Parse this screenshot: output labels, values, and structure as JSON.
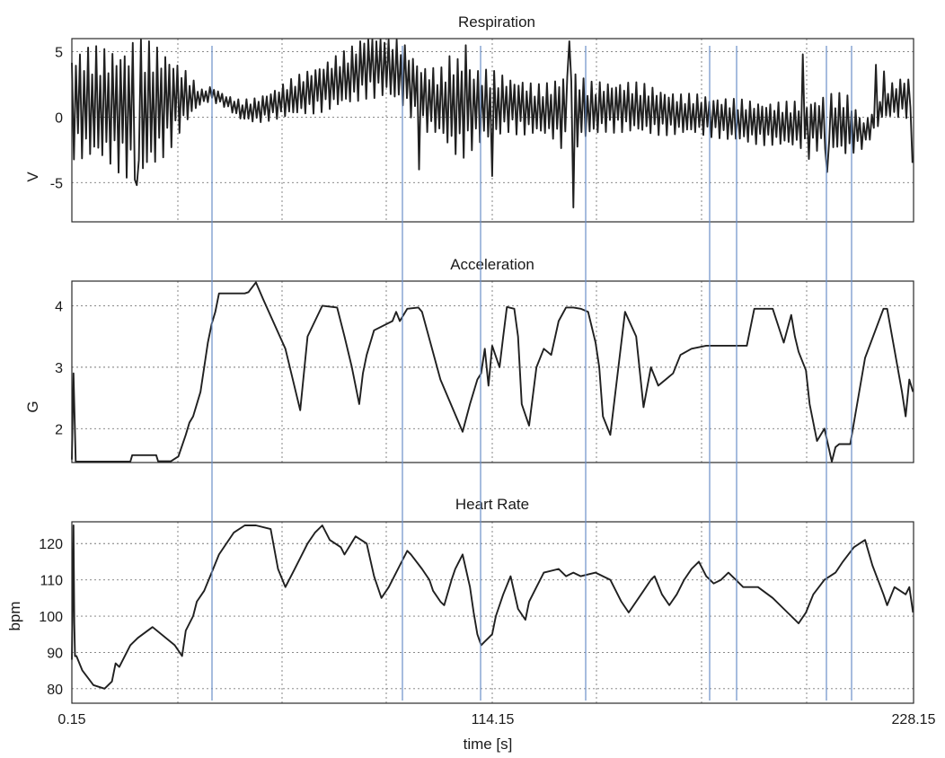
{
  "chart_data": [
    {
      "type": "line",
      "title": "Respiration",
      "ylabel": "V",
      "xlabel": "",
      "xlim": [
        0.15,
        228.15
      ],
      "ylim": [
        -8,
        6
      ],
      "yticks": [
        -5,
        0,
        5
      ],
      "xtick_labels": [],
      "grid": true,
      "series": [
        {
          "x": [
            0,
            5,
            10,
            15,
            18,
            22,
            26,
            30,
            35,
            38,
            42,
            46,
            50,
            55,
            60,
            65,
            70,
            75,
            80,
            85,
            90,
            95,
            100,
            103,
            106,
            110,
            114,
            118,
            122,
            126,
            130,
            135,
            140,
            145,
            150,
            155,
            160,
            165,
            170,
            175,
            180,
            185,
            190,
            195,
            200,
            205,
            210,
            215,
            220,
            225,
            228
          ],
          "amp": [
            4.2,
            4.5,
            4.5,
            5.2,
            6.0,
            5.0,
            4.0,
            2.5,
            0.6,
            0.6,
            0.5,
            0.8,
            1.0,
            1.2,
            1.5,
            1.8,
            2.0,
            2.2,
            2.6,
            2.8,
            2.6,
            2.6,
            2.7,
            4.0,
            4.0,
            3.0,
            2.8,
            2.2,
            2.2,
            2.0,
            2.2,
            3.5,
            2.2,
            2.0,
            2.0,
            2.0,
            1.8,
            1.6,
            1.6,
            1.6,
            1.7,
            1.7,
            1.7,
            1.8,
            2.0,
            2.2,
            2.5,
            1.0,
            1.2,
            1.6,
            1.7
          ],
          "center": [
            1.0,
            1.0,
            0.8,
            0.5,
            0.5,
            0.8,
            1.2,
            1.5,
            1.5,
            1.8,
            1.2,
            0.5,
            0.5,
            1.0,
            1.5,
            2.0,
            2.5,
            3.0,
            4.0,
            4.2,
            3.2,
            1.5,
            1.0,
            1.0,
            0.8,
            0.8,
            0.8,
            1.0,
            0.8,
            0.5,
            0.5,
            0.5,
            0.5,
            0.8,
            0.8,
            0.6,
            0.4,
            0.2,
            0.2,
            0.0,
            -0.3,
            -0.4,
            -0.5,
            -0.6,
            -0.6,
            -0.4,
            -0.6,
            -1.3,
            1.0,
            1.5,
            1.6
          ],
          "spikes": [
            [
              18,
              -5.2
            ],
            [
              21,
              5.8
            ],
            [
              94,
              -4
            ],
            [
              107,
              5.5
            ],
            [
              114,
              -4.5
            ],
            [
              135,
              5.8
            ],
            [
              136,
              -6.9
            ],
            [
              198,
              4.8
            ],
            [
              200,
              -3.2
            ],
            [
              205,
              -4.2
            ],
            [
              218,
              4.0
            ],
            [
              220,
              3.5
            ],
            [
              228,
              -3.5
            ]
          ]
        }
      ]
    },
    {
      "type": "line",
      "title": "Acceleration",
      "ylabel": "G",
      "xlabel": "",
      "xlim": [
        0.15,
        228.15
      ],
      "ylim": [
        1.45,
        4.4
      ],
      "yticks": [
        2,
        3,
        4
      ],
      "xtick_labels": [],
      "grid": true,
      "series": [
        {
          "x": [
            0.15,
            0.6,
            1.2,
            16,
            16.5,
            23,
            23.5,
            27,
            29,
            31,
            32,
            33,
            35,
            37,
            38,
            39,
            40,
            47,
            48,
            50,
            52,
            58,
            62,
            64,
            68,
            72,
            74,
            76,
            78,
            79,
            80,
            82,
            87,
            88,
            89,
            91,
            94,
            95,
            100,
            106,
            108,
            110,
            111,
            112,
            113,
            114,
            116,
            117,
            118,
            120,
            121,
            122,
            124,
            126,
            128,
            130,
            132,
            134,
            136,
            138,
            140,
            142,
            143,
            144,
            146,
            150,
            153,
            155,
            157,
            159,
            161,
            163,
            165,
            168,
            172,
            180,
            183,
            185,
            190,
            193,
            195,
            196,
            197,
            199,
            200,
            202,
            204,
            206,
            207,
            208,
            209,
            211,
            215,
            220,
            221,
            225,
            226,
            227,
            228
          ],
          "y": [
            1.5,
            2.9,
            1.45,
            1.45,
            1.57,
            1.57,
            1.47,
            1.47,
            1.55,
            1.9,
            2.1,
            2.2,
            2.6,
            3.4,
            3.7,
            3.9,
            4.2,
            4.2,
            4.22,
            4.38,
            4.1,
            3.3,
            2.3,
            3.5,
            4.0,
            3.97,
            3.5,
            3.0,
            2.4,
            2.9,
            3.2,
            3.6,
            3.75,
            3.9,
            3.75,
            3.95,
            3.97,
            3.9,
            2.8,
            1.95,
            2.4,
            2.8,
            2.9,
            3.3,
            2.7,
            3.35,
            3.0,
            3.5,
            3.98,
            3.95,
            3.5,
            2.4,
            2.05,
            3.0,
            3.3,
            3.2,
            3.75,
            3.97,
            3.97,
            3.95,
            3.9,
            3.4,
            3.0,
            2.2,
            1.9,
            3.9,
            3.5,
            2.35,
            3.0,
            2.7,
            2.8,
            2.9,
            3.2,
            3.3,
            3.35,
            3.35,
            3.35,
            3.95,
            3.95,
            3.4,
            3.85,
            3.5,
            3.25,
            2.95,
            2.4,
            1.8,
            2.0,
            1.38,
            1.7,
            1.75,
            1.75,
            1.75,
            3.15,
            3.95,
            3.95,
            2.6,
            2.2,
            2.8,
            2.6
          ]
        }
      ]
    },
    {
      "type": "line",
      "title": "Heart Rate",
      "ylabel": "bpm",
      "xlabel": "time [s]",
      "xlim": [
        0.15,
        228.15
      ],
      "ylim": [
        76,
        126
      ],
      "yticks": [
        80,
        90,
        100,
        110,
        120
      ],
      "xticks": [
        0.15,
        114.15,
        228.15
      ],
      "xtick_labels": [
        "0.15",
        "114.15",
        "228.15"
      ],
      "grid": true,
      "series": [
        {
          "x": [
            0.15,
            0.4,
            0.6,
            0.8,
            1.0,
            1.4,
            3,
            6,
            9,
            11,
            12,
            13,
            16,
            18,
            22,
            28,
            30,
            31,
            33,
            34,
            36,
            38,
            40,
            44,
            47,
            50,
            54,
            56,
            58,
            60,
            62,
            64,
            66,
            68,
            70,
            73,
            74,
            77,
            80,
            82,
            84,
            86,
            89,
            91,
            92,
            95,
            97,
            98,
            100,
            101,
            103,
            104,
            106,
            108,
            109,
            110,
            111,
            112,
            113,
            114,
            115,
            117,
            119,
            121,
            123,
            124,
            126,
            128,
            132,
            134,
            136,
            138,
            142,
            146,
            149,
            151,
            155,
            157,
            158,
            160,
            162,
            164,
            166,
            168,
            170,
            172,
            174,
            176,
            178,
            180,
            182,
            186,
            190,
            194,
            197,
            199,
            201,
            204,
            207,
            209,
            212,
            215,
            217,
            220,
            221,
            223,
            226,
            227,
            228
          ],
          "y": [
            88,
            108,
            125,
            98,
            89,
            89,
            85,
            81,
            80,
            82,
            87,
            86,
            92,
            94,
            97,
            92,
            89,
            96,
            100,
            104,
            107,
            112,
            117,
            123,
            125,
            125,
            124,
            113,
            108,
            112,
            116,
            120,
            123,
            125,
            121,
            119,
            117,
            122,
            120,
            111,
            105,
            108,
            114,
            118,
            117,
            113,
            110,
            107,
            104,
            103,
            110,
            113,
            117,
            108,
            101,
            95,
            92,
            93,
            94,
            95,
            100,
            106,
            111,
            102,
            99,
            104,
            108,
            112,
            113,
            111,
            112,
            111,
            112,
            110,
            104,
            101,
            107,
            110,
            111,
            106,
            103,
            106,
            110,
            113,
            115,
            111,
            109,
            110,
            112,
            110,
            108,
            108,
            105,
            101,
            98,
            101,
            106,
            110,
            112,
            115,
            119,
            121,
            114,
            106,
            103,
            108,
            106,
            108,
            101
          ]
        }
      ]
    }
  ]
}
